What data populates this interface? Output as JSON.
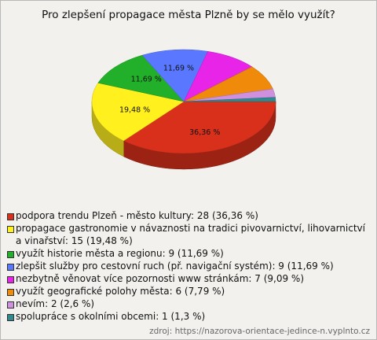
{
  "chart_data": {
    "type": "pie",
    "title": "Pro zlepšení propagace města Plzně by se mělo využít?",
    "categories": [
      "podpora trendu Plzeň - město kultury: 28 (36,36 %)",
      "propagace gastronomie v návaznosti na tradici pivovarnictví, lihovarnictví a vinařství: 15 (19,48 %)",
      "využít historie města a regionu: 9 (11,69 %)",
      "zlepšit služby pro cestovní ruch (př. navigační systém): 9 (11,69 %)",
      "nezbytně věnovat více pozornosti www stránkám: 7 (9,09 %)",
      "využít geografické polohy města: 6 (7,79 %)",
      "nevím: 2 (2,6 %)",
      "spolupráce s okolními obcemi: 1 (1,3 %)"
    ],
    "values": [
      36.36,
      19.48,
      11.69,
      11.69,
      9.09,
      7.79,
      2.6,
      1.3
    ],
    "value_labels": [
      "36,36 %",
      "19,48 %",
      "11,69 %",
      "11,69 %",
      null,
      null,
      null,
      null
    ],
    "colors": [
      "#d9301c",
      "#fff01e",
      "#22b02a",
      "#5a78ff",
      "#e824e8",
      "#f08a0a",
      "#d090e0",
      "#2e8a8e"
    ],
    "source": "zdroj: https://nazorova-orientace-jedince-n.vyplnto.cz"
  }
}
